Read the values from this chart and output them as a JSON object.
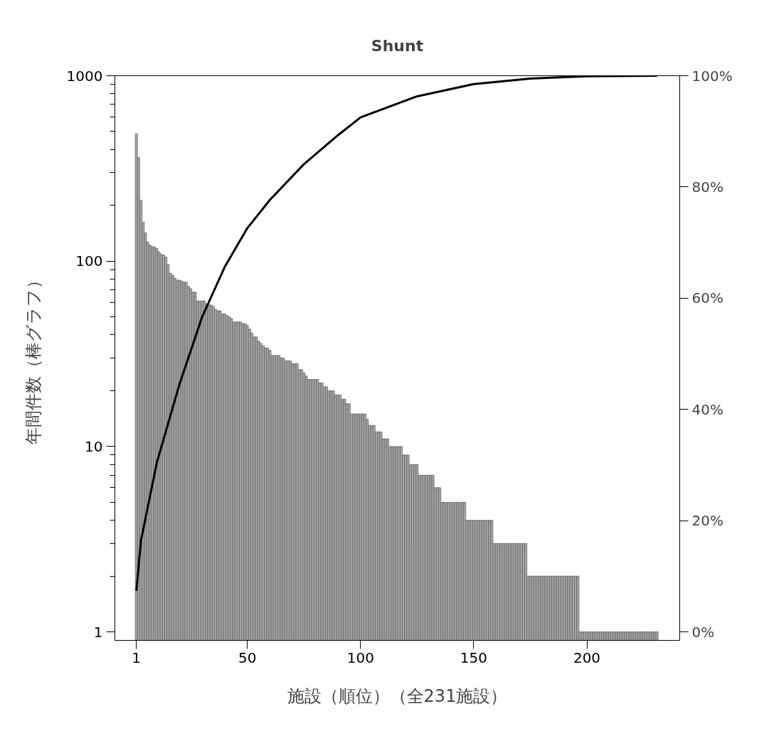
{
  "chart_data": {
    "type": "bar",
    "title": "Shunt",
    "xlabel": "施設（順位）（全231施設）",
    "ylabel": "年間件数（棒グラフ）",
    "x": [
      1,
      2,
      3,
      4,
      5,
      6,
      7,
      8,
      9,
      10,
      11,
      12,
      13,
      14,
      15,
      16,
      17,
      18,
      19,
      20,
      21,
      22,
      23,
      24,
      25,
      26,
      27,
      28,
      29,
      30,
      31,
      32,
      33,
      34,
      35,
      36,
      37,
      38,
      39,
      40,
      41,
      42,
      43,
      44,
      45,
      46,
      47,
      48,
      49,
      50,
      51,
      52,
      53,
      54,
      55,
      56,
      57,
      58,
      59,
      60,
      61,
      62,
      63,
      64,
      65,
      66,
      67,
      68,
      69,
      70,
      71,
      72,
      73,
      74,
      75,
      76,
      77,
      78,
      79,
      80,
      81,
      82,
      83,
      84,
      85,
      86,
      87,
      88,
      89,
      90,
      91,
      92,
      93,
      94,
      95,
      96,
      97,
      98,
      99,
      100,
      101,
      102,
      103,
      104,
      105,
      106,
      107,
      108,
      109,
      110,
      111,
      112,
      113,
      114,
      115,
      116,
      117,
      118,
      119,
      120,
      121,
      122,
      123,
      124,
      125,
      126,
      127,
      128,
      129,
      130,
      131,
      132,
      133,
      134,
      135,
      136,
      137,
      138,
      139,
      140,
      141,
      142,
      143,
      144,
      145,
      146,
      147,
      148,
      149,
      150,
      151,
      152,
      153,
      154,
      155,
      156,
      157,
      158,
      159,
      160,
      161,
      162,
      163,
      164,
      165,
      166,
      167,
      168,
      169,
      170,
      171,
      172,
      173,
      174,
      175,
      176,
      177,
      178,
      179,
      180,
      181,
      182,
      183,
      184,
      185,
      186,
      187,
      188,
      189,
      190,
      191,
      192,
      193,
      194,
      195,
      196,
      197,
      198,
      199,
      200,
      201,
      202,
      203,
      204,
      205,
      206,
      207,
      208,
      209,
      210,
      211,
      212,
      213,
      214,
      215,
      216,
      217,
      218,
      219,
      220,
      221,
      222,
      223,
      224,
      225,
      226,
      227,
      228,
      229,
      230,
      231
    ],
    "series": [
      {
        "color": "#a6a6a6",
        "values": [
          486,
          363,
          213,
          162,
          142,
          127,
          122,
          120,
          119,
          117,
          112,
          109,
          108,
          105,
          96,
          86,
          84,
          81,
          79,
          79,
          78,
          77,
          77,
          73,
          71,
          68,
          68,
          61,
          61,
          61,
          61,
          59,
          58,
          58,
          57,
          55,
          54,
          54,
          52,
          52,
          51,
          50,
          49,
          47,
          47,
          47,
          47,
          46,
          46,
          45,
          43,
          41,
          39,
          39,
          37,
          36,
          35,
          34,
          34,
          33,
          31,
          31,
          31,
          31,
          30,
          30,
          29,
          29,
          29,
          28,
          28,
          28,
          26,
          26,
          25,
          24,
          23,
          23,
          23,
          23,
          23,
          22,
          22,
          21,
          21,
          20,
          20,
          20,
          19,
          19,
          19,
          18,
          18,
          17,
          17,
          15,
          15,
          15,
          15,
          15,
          15,
          15,
          14,
          13,
          13,
          13,
          12,
          12,
          12,
          11,
          11,
          11,
          10,
          10,
          10,
          10,
          10,
          10,
          9,
          9,
          9,
          8,
          8,
          8,
          8,
          7,
          7,
          7,
          7,
          7,
          7,
          7,
          6,
          6,
          6,
          5,
          5,
          5,
          5,
          5,
          5,
          5,
          5,
          5,
          5,
          5,
          4,
          4,
          4,
          4,
          4,
          4,
          4,
          4,
          4,
          4,
          4,
          4,
          3,
          3,
          3,
          3,
          3,
          3,
          3,
          3,
          3,
          3,
          3,
          3,
          3,
          3,
          3,
          2,
          2,
          2,
          2,
          2,
          2,
          2,
          2,
          2,
          2,
          2,
          2,
          2,
          2,
          2,
          2,
          2,
          2,
          2,
          2,
          2,
          2,
          2,
          1,
          1,
          1,
          1,
          1,
          1,
          1,
          1,
          1,
          1,
          1,
          1,
          1,
          1,
          1,
          1,
          1,
          1,
          1,
          1,
          1,
          1,
          1,
          1,
          1,
          1,
          1,
          1,
          1,
          1,
          1,
          1,
          1,
          1,
          1
        ]
      },
      {
        "type": "line",
        "axis": "y2",
        "color": "#000000",
        "x": [
          1,
          3,
          10,
          20,
          30,
          40,
          50,
          60,
          75,
          90,
          100,
          125,
          150,
          175,
          200,
          231
        ],
        "values": [
          7.4,
          16.4,
          30.4,
          44.5,
          56.6,
          65.6,
          72.6,
          77.7,
          84.1,
          89.3,
          92.5,
          96.3,
          98.5,
          99.5,
          99.9,
          100
        ]
      }
    ],
    "log": true,
    "xlim": [
      -8.5,
      241
    ],
    "xticks": [
      1,
      50,
      100,
      150,
      200
    ],
    "ylim": [
      0.9,
      1000
    ],
    "yticks": [
      1,
      {
        "value": 2,
        "label": null
      },
      {
        "value": 3,
        "label": null
      },
      {
        "value": 4,
        "label": null
      },
      {
        "value": 5,
        "label": null
      },
      {
        "value": 6,
        "label": null
      },
      {
        "value": 7,
        "label": null
      },
      {
        "value": 8,
        "label": null
      },
      {
        "value": 9,
        "label": null
      },
      10,
      {
        "value": 20,
        "label": null
      },
      {
        "value": 30,
        "label": null
      },
      {
        "value": 40,
        "label": null
      },
      {
        "value": 50,
        "label": null
      },
      {
        "value": 60,
        "label": null
      },
      {
        "value": 70,
        "label": null
      },
      {
        "value": 80,
        "label": null
      },
      {
        "value": 90,
        "label": null
      },
      100,
      {
        "value": 200,
        "label": null
      },
      {
        "value": 300,
        "label": null
      },
      {
        "value": 400,
        "label": null
      },
      {
        "value": 500,
        "label": null
      },
      {
        "value": 600,
        "label": null
      },
      {
        "value": 700,
        "label": null
      },
      {
        "value": 800,
        "label": null
      },
      {
        "value": 900,
        "label": null
      },
      1000
    ],
    "y2lim": [
      -1.5,
      100
    ],
    "y2ticks": [
      {
        "value": 0,
        "label": "0%"
      },
      {
        "value": 20,
        "label": "20%"
      },
      {
        "value": 40,
        "label": "40%"
      },
      {
        "value": 60,
        "label": "60%"
      },
      {
        "value": 80,
        "label": "80%"
      },
      {
        "value": 100,
        "label": "100%"
      }
    ],
    "grid": false
  }
}
